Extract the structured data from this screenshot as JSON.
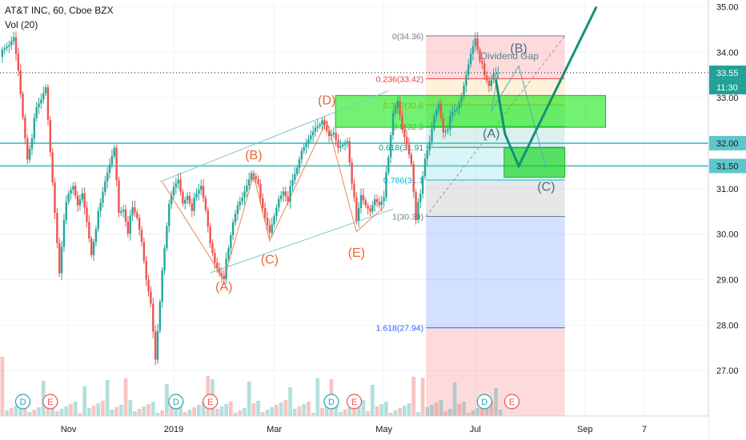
{
  "header": {
    "symbol_line": "AT&T INC, 60, Cboe BZX",
    "volume_line": "Vol (20)"
  },
  "chart_data": {
    "type": "candlestick",
    "ylim": [
      26.0,
      35.15
    ],
    "price_axis_ticks": [
      "35.00",
      "34.00",
      "33.00",
      "32.00",
      "31.00",
      "30.00",
      "29.00",
      "28.00",
      "27.00"
    ],
    "price_axis_values": [
      35,
      34,
      33,
      32,
      31,
      30,
      29,
      28,
      27
    ],
    "time_axis_labels": [
      "Nov",
      "2019",
      "Mar",
      "May",
      "Jul",
      "Sep",
      "7"
    ],
    "time_axis_index": [
      15,
      38,
      60,
      84,
      104,
      128,
      141
    ],
    "index_range": [
      0,
      155
    ],
    "current_price_label": "33.55",
    "current_price": 33.55,
    "countdown_label": "11:30",
    "level_labels": [
      {
        "text": "32.00",
        "value": 32.0
      },
      {
        "text": "31.50",
        "value": 31.5
      }
    ],
    "fibonacci": {
      "levels": [
        {
          "label": "0(34.36)",
          "value": 34.36,
          "color": "#787b86"
        },
        {
          "label": "0.236(33.42)",
          "value": 33.42,
          "color": "#f23645"
        },
        {
          "label": "0.382(32.8",
          "value": 32.84,
          "color": "#ff9800"
        },
        {
          "label": "0.5(32.3",
          "value": 32.37,
          "color": "#4caf50"
        },
        {
          "label": "0.618(31.91",
          "value": 31.91,
          "color": "#089981"
        },
        {
          "label": "0.786(31.1",
          "value": 31.19,
          "color": "#00bcd4"
        },
        {
          "label": "1(30.39)",
          "value": 30.39,
          "color": "#787b86"
        },
        {
          "label": "1.618(27.94)",
          "value": 27.94,
          "color": "#2962ff"
        }
      ]
    },
    "wave_labels": [
      {
        "text": "(A)",
        "x": 49,
        "value": 28.75,
        "color": "#e8672e"
      },
      {
        "text": "(B)",
        "x": 55.5,
        "value": 31.65,
        "color": "#e8672e"
      },
      {
        "text": "(C)",
        "x": 59,
        "value": 29.35,
        "color": "#e8672e"
      },
      {
        "text": "(D)",
        "x": 71.5,
        "value": 32.85,
        "color": "#e8672e"
      },
      {
        "text": "(E)",
        "x": 78,
        "value": 29.5,
        "color": "#e8672e"
      },
      {
        "text": "(B)",
        "x": 113.5,
        "value": 34.0,
        "color": "#4a6f85"
      },
      {
        "text": "(A)",
        "x": 107.5,
        "value": 32.12,
        "color": "#4a6f85"
      },
      {
        "text": "(C)",
        "x": 119.5,
        "value": 30.95,
        "color": "#4a6f85"
      }
    ],
    "annotations": [
      {
        "text": "Dividend Gap",
        "x": 111.5,
        "value": 33.85
      }
    ],
    "events": [
      {
        "type": "D",
        "x": 5
      },
      {
        "type": "E",
        "x": 11
      },
      {
        "type": "D",
        "x": 38.5
      },
      {
        "type": "E",
        "x": 46
      },
      {
        "type": "D",
        "x": 72.5
      },
      {
        "type": "E",
        "x": 77.5
      },
      {
        "type": "D",
        "x": 106
      },
      {
        "type": "E",
        "x": 112
      }
    ],
    "price_waypoints": [
      [
        0,
        33.9
      ],
      [
        2,
        34.1
      ],
      [
        3,
        34.3
      ],
      [
        4,
        33.6
      ],
      [
        5,
        32.6
      ],
      [
        6,
        31.7
      ],
      [
        7,
        32.2
      ],
      [
        8,
        32.7
      ],
      [
        9,
        32.9
      ],
      [
        10,
        33.2
      ],
      [
        11,
        31.8
      ],
      [
        12,
        30.5
      ],
      [
        13,
        29.2
      ],
      [
        14,
        30.4
      ],
      [
        15,
        30.8
      ],
      [
        16,
        31.0
      ],
      [
        17,
        30.6
      ],
      [
        18,
        30.9
      ],
      [
        19,
        30.3
      ],
      [
        20,
        29.6
      ],
      [
        21,
        30.2
      ],
      [
        22,
        30.6
      ],
      [
        23,
        31.1
      ],
      [
        24,
        31.5
      ],
      [
        25,
        31.9
      ],
      [
        26,
        30.5
      ],
      [
        27,
        30.6
      ],
      [
        28,
        30.1
      ],
      [
        29,
        30.5
      ],
      [
        30,
        30.3
      ],
      [
        31,
        29.8
      ],
      [
        32,
        29.0
      ],
      [
        33,
        28.5
      ],
      [
        34,
        27.3
      ],
      [
        35,
        28.6
      ],
      [
        36,
        29.6
      ],
      [
        37,
        30.6
      ],
      [
        38,
        31.0
      ],
      [
        39,
        31.2
      ],
      [
        40,
        30.7
      ],
      [
        41,
        30.9
      ],
      [
        42,
        30.6
      ],
      [
        43,
        30.8
      ],
      [
        44,
        31.0
      ],
      [
        45,
        30.5
      ],
      [
        46,
        29.8
      ],
      [
        47,
        29.4
      ],
      [
        48,
        29.2
      ],
      [
        49,
        29.1
      ],
      [
        50,
        29.6
      ],
      [
        51,
        30.2
      ],
      [
        52,
        30.6
      ],
      [
        53,
        30.8
      ],
      [
        54,
        31.1
      ],
      [
        55,
        31.4
      ],
      [
        56,
        31.3
      ],
      [
        57,
        30.7
      ],
      [
        58,
        30.3
      ],
      [
        59,
        30.0
      ],
      [
        60,
        30.4
      ],
      [
        61,
        30.8
      ],
      [
        62,
        31.0
      ],
      [
        63,
        30.8
      ],
      [
        64,
        31.1
      ],
      [
        65,
        31.4
      ],
      [
        66,
        31.8
      ],
      [
        67,
        32.0
      ],
      [
        68,
        32.2
      ],
      [
        69,
        32.4
      ],
      [
        70,
        32.5
      ],
      [
        71,
        32.3
      ],
      [
        72,
        32.1
      ],
      [
        73,
        32.2
      ],
      [
        74,
        31.9
      ],
      [
        75,
        32.0
      ],
      [
        76,
        32.1
      ],
      [
        77,
        31.2
      ],
      [
        78,
        30.2
      ],
      [
        79,
        30.8
      ],
      [
        80,
        30.6
      ],
      [
        81,
        30.5
      ],
      [
        82,
        30.8
      ],
      [
        83,
        30.7
      ],
      [
        84,
        30.9
      ],
      [
        85,
        31.6
      ],
      [
        86,
        32.6
      ],
      [
        87,
        32.9
      ],
      [
        88,
        32.3
      ],
      [
        89,
        32.0
      ],
      [
        90,
        31.6
      ],
      [
        91,
        30.4
      ],
      [
        92,
        30.8
      ],
      [
        93,
        31.6
      ],
      [
        94,
        32.0
      ],
      [
        95,
        32.6
      ],
      [
        96,
        32.9
      ],
      [
        97,
        32.3
      ],
      [
        98,
        32.4
      ],
      [
        99,
        32.6
      ],
      [
        100,
        32.7
      ],
      [
        101,
        33.0
      ],
      [
        102,
        33.5
      ],
      [
        103,
        34.0
      ],
      [
        104,
        34.36
      ],
      [
        105,
        33.9
      ],
      [
        106,
        33.4
      ],
      [
        107,
        33.2
      ],
      [
        108,
        33.5
      ],
      [
        109,
        33.55
      ]
    ]
  }
}
